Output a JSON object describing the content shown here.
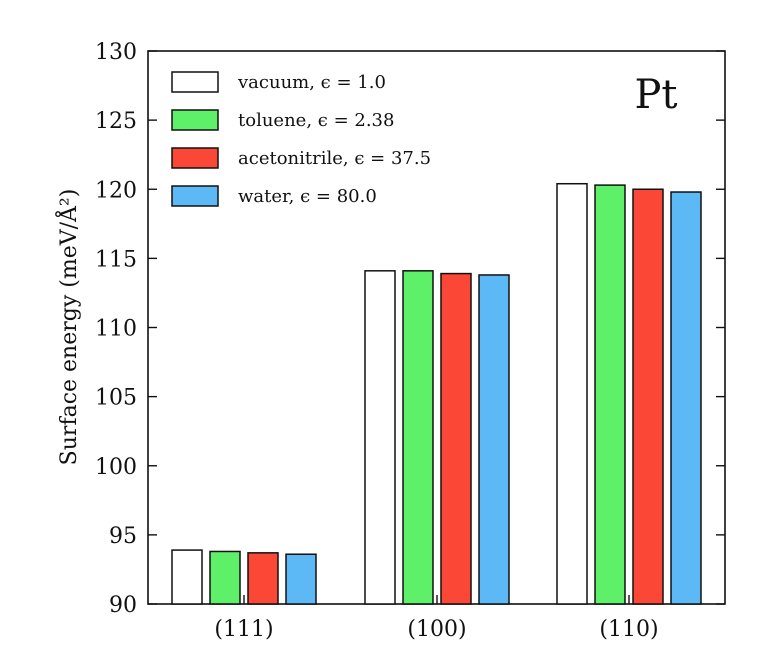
{
  "chart_data": {
    "type": "bar",
    "annotation": "Pt",
    "ylabel": "Surface energy (meV/Å²)",
    "ylim": [
      90,
      130
    ],
    "yticks": [
      90,
      95,
      100,
      105,
      110,
      115,
      120,
      125,
      130
    ],
    "categories": [
      "(111)",
      "(100)",
      "(110)"
    ],
    "legend_position": "top-left",
    "series": [
      {
        "name": "vacuum, ϵ = 1.0",
        "color": "#ffffff",
        "values": [
          93.9,
          114.1,
          120.4
        ]
      },
      {
        "name": "toluene, ϵ = 2.38",
        "color": "#5ff06a",
        "values": [
          93.8,
          114.1,
          120.3
        ]
      },
      {
        "name": "acetonitrile, ϵ = 37.5",
        "color": "#fb4836",
        "values": [
          93.7,
          113.9,
          120.0
        ]
      },
      {
        "name": "water, ϵ = 80.0",
        "color": "#5db9f5",
        "values": [
          93.6,
          113.8,
          119.8
        ]
      }
    ]
  }
}
